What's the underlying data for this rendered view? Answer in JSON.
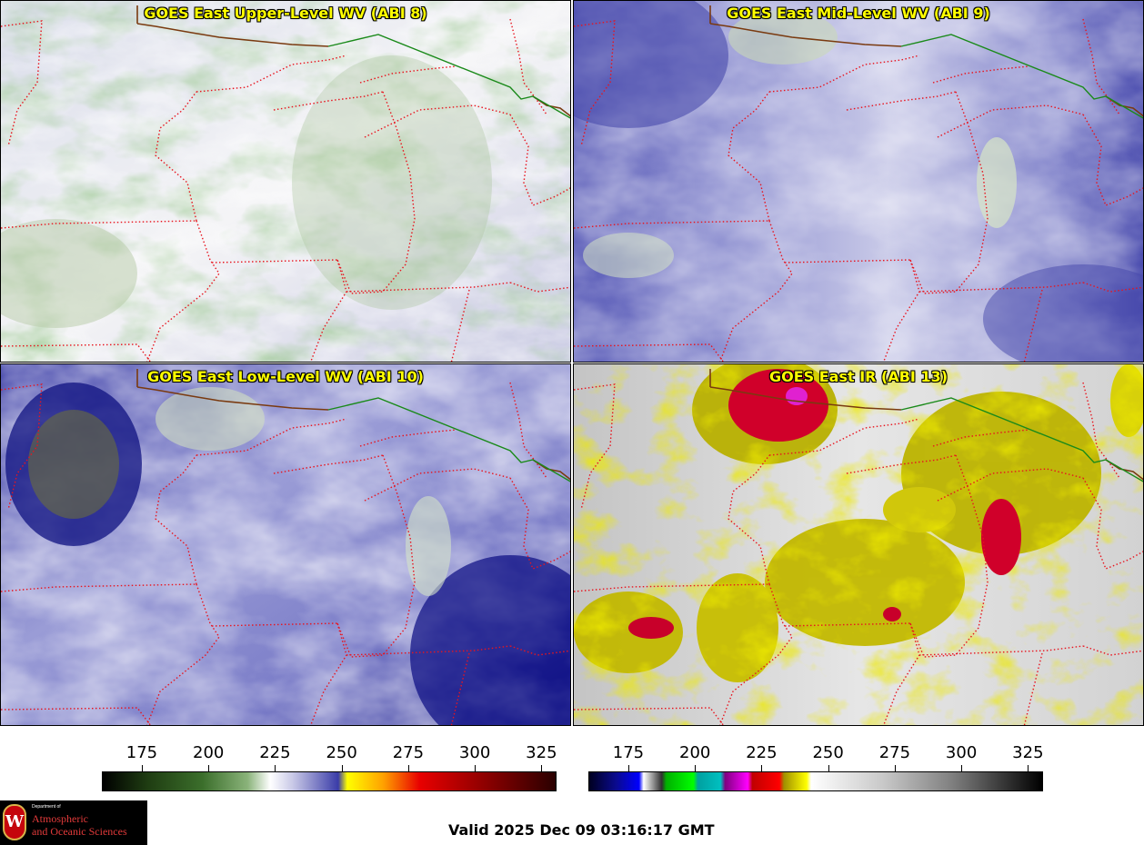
{
  "panels": [
    {
      "title": "GOES East Upper-Level WV (ABI 8)",
      "colormap": "water-vapor"
    },
    {
      "title": "GOES East Mid-Level WV (ABI 9)",
      "colormap": "water-vapor"
    },
    {
      "title": "GOES East Low-Level WV (ABI 10)",
      "colormap": "water-vapor"
    },
    {
      "title": "GOES East IR (ABI 13)",
      "colormap": "infrared"
    }
  ],
  "colorbars": [
    {
      "name": "water-vapor",
      "ticks": [
        "175",
        "200",
        "225",
        "250",
        "275",
        "300",
        "325"
      ],
      "range": [
        160,
        330
      ]
    },
    {
      "name": "infrared",
      "ticks": [
        "175",
        "200",
        "225",
        "250",
        "275",
        "300",
        "325"
      ],
      "range": [
        160,
        330
      ]
    }
  ],
  "colors": {
    "state_borders": "#e8141e",
    "international_border": "#1a8a1a",
    "coastline": "#7a3a10",
    "title_text": "#ffff00"
  },
  "logo": {
    "seal_letter": "W",
    "dept": "Department of",
    "line1": "Atmospheric",
    "line2": "and Oceanic Sciences"
  },
  "valid_time": "Valid 2025 Dec 09 03:16:17 GMT"
}
